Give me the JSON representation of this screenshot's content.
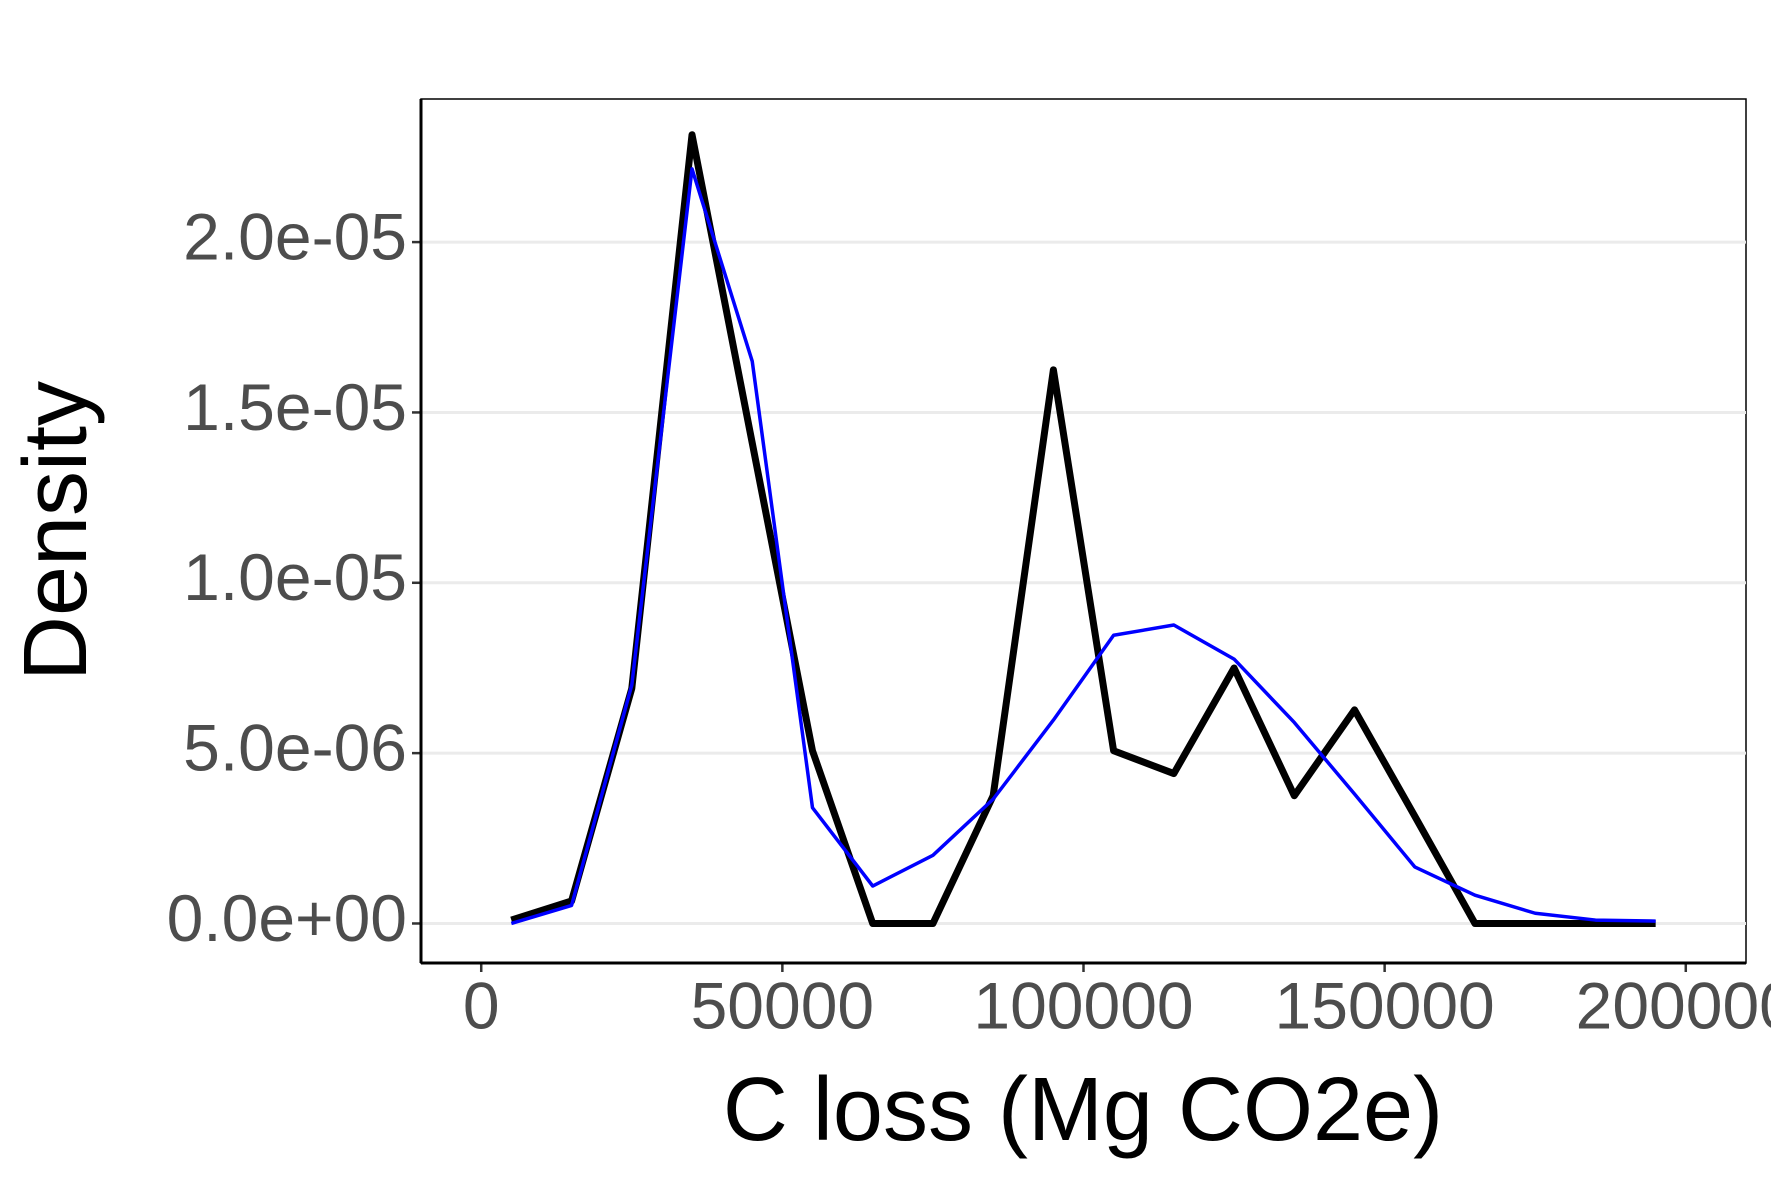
{
  "chart_data": {
    "type": "line",
    "x_label": "C loss (Mg CO2e)",
    "y_label": "Density",
    "x": [
      5000,
      15000,
      25000,
      35000,
      45000,
      55000,
      65000,
      75000,
      85000,
      95000,
      105000,
      115000,
      125000,
      135000,
      145000,
      155000,
      165000,
      175000,
      185000,
      195000
    ],
    "series": [
      {
        "color": "#000000",
        "values": [
          1e-07,
          6.6e-07,
          6.9e-06,
          2.315e-05,
          1.41e-05,
          5.07e-06,
          0,
          0,
          3.75e-06,
          1.625e-05,
          5.07e-06,
          4.4e-06,
          7.5e-06,
          3.75e-06,
          6.27e-06,
          3.15e-06,
          0,
          0,
          0,
          0
        ]
      },
      {
        "color": "#0000ff",
        "values": [
          0,
          5.3e-07,
          7e-06,
          2.215e-05,
          1.65e-05,
          3.4e-06,
          1.1e-06,
          2e-06,
          3.65e-06,
          5.97e-06,
          8.46e-06,
          8.76e-06,
          7.76e-06,
          5.9e-06,
          3.8e-06,
          1.66e-06,
          8.3e-07,
          3e-07,
          1e-07,
          7e-08
        ]
      }
    ],
    "xlim": [
      -10000,
      210000
    ],
    "xticks": [
      0,
      50000,
      100000,
      150000,
      200000
    ],
    "ylim": [
      -1.16e-06,
      2.42e-05
    ],
    "yticks": [
      {
        "value": 0,
        "label": "0.0e+00"
      },
      {
        "value": 5e-06,
        "label": "5.0e-06"
      },
      {
        "value": 1e-05,
        "label": "1.0e-05"
      },
      {
        "value": 1.5e-05,
        "label": "1.5e-05"
      },
      {
        "value": 2e-05,
        "label": "2.0e-05"
      }
    ],
    "grid": true
  }
}
